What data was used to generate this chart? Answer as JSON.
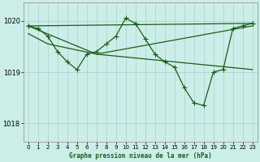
{
  "title": "Graphe pression niveau de la mer (hPa)",
  "bg_color": "#cceee8",
  "grid_color": "#b0cccc",
  "line_color": "#1a5c1a",
  "marker_color": "#1a5c1a",
  "xlim": [
    -0.5,
    23.5
  ],
  "ylim": [
    1017.65,
    1020.35
  ],
  "yticks": [
    1018,
    1019,
    1020
  ],
  "xticks": [
    0,
    1,
    2,
    3,
    4,
    5,
    6,
    7,
    8,
    9,
    10,
    11,
    12,
    13,
    14,
    15,
    16,
    17,
    18,
    19,
    20,
    21,
    22,
    23
  ],
  "series": [
    {
      "x": [
        0,
        1,
        2,
        3,
        4,
        5,
        6,
        7,
        8,
        9,
        10,
        11,
        12,
        13,
        14,
        15,
        16,
        17,
        18,
        19,
        20,
        21,
        22,
        23
      ],
      "y": [
        1019.9,
        1019.85,
        1019.7,
        1019.4,
        1019.2,
        1019.05,
        1019.35,
        1019.4,
        1019.55,
        1019.7,
        1020.05,
        1019.95,
        1019.65,
        1019.35,
        1019.2,
        1019.1,
        1018.7,
        1018.4,
        1018.35,
        1019.0,
        1019.05,
        1019.85,
        1019.9,
        1019.95
      ],
      "markers": true
    },
    {
      "x": [
        0,
        23
      ],
      "y": [
        1019.9,
        1019.95
      ],
      "markers": true
    },
    {
      "x": [
        0,
        7,
        23
      ],
      "y": [
        1019.9,
        1019.35,
        1019.05
      ],
      "markers": false
    },
    {
      "x": [
        0,
        2,
        7,
        23
      ],
      "y": [
        1019.75,
        1019.55,
        1019.35,
        1019.9
      ],
      "markers": false
    }
  ]
}
